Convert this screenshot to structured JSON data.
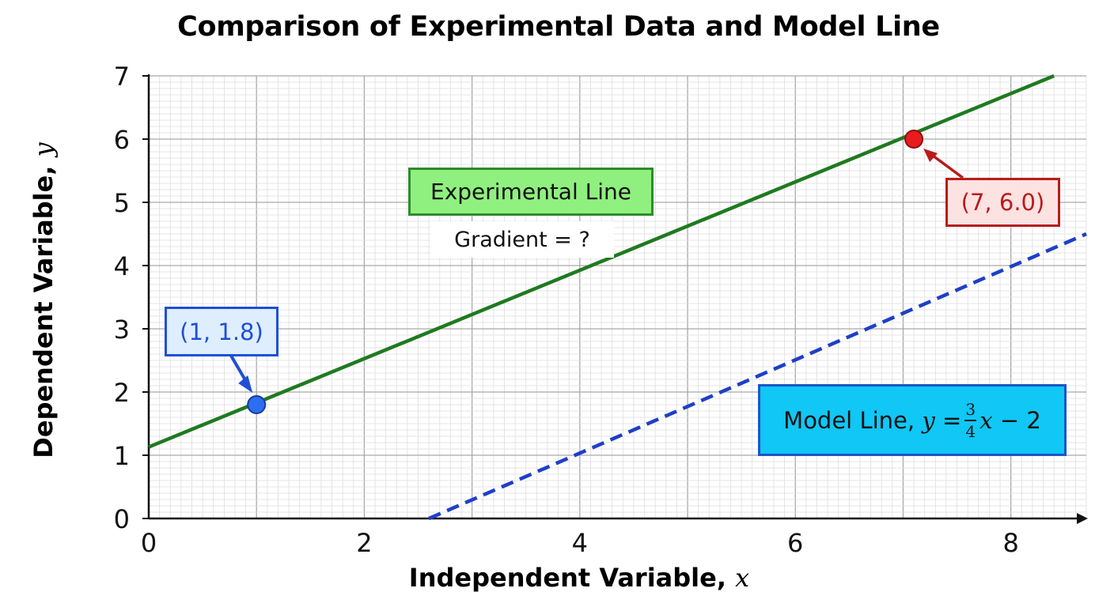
{
  "chart_data": {
    "type": "line",
    "title": "Comparison of Experimental Data  and Model Line",
    "xlabel": {
      "text": "Independent Variable,",
      "var": "x"
    },
    "ylabel": {
      "text": "Dependent Variable,",
      "var": "y"
    },
    "xlim": [
      0,
      8.7
    ],
    "ylim": [
      0,
      7
    ],
    "xticks": [
      0,
      2,
      4,
      6,
      8
    ],
    "yticks": [
      0,
      1,
      2,
      3,
      4,
      5,
      6,
      7
    ],
    "grid": true,
    "series": [
      {
        "name": "Experimental Line",
        "style": "solid",
        "color": "#1f7a1f",
        "x": [
          0,
          8.4
        ],
        "y": [
          1.13,
          7.0
        ]
      },
      {
        "name": "Model Line",
        "style": "dashed",
        "color": "#1f3fc8",
        "x": [
          2.6,
          8.7
        ],
        "y": [
          0,
          4.5
        ]
      }
    ],
    "points": [
      {
        "x": 1,
        "y": 1.8,
        "label": "(1, 1.8)",
        "color": "#2b6ef2"
      },
      {
        "x": 7.1,
        "y": 6.0,
        "label": "(7, 6.0)",
        "color": "#e81c1c"
      }
    ],
    "annotations": {
      "experimental_line": "Experimental Line",
      "gradient": "Gradient = ?",
      "model_line_text": "Model Line,",
      "model_line_equation": {
        "lhs": "y",
        "equals": "=",
        "num": "3",
        "den": "4",
        "x": "x",
        "rest": "− 2"
      }
    }
  }
}
